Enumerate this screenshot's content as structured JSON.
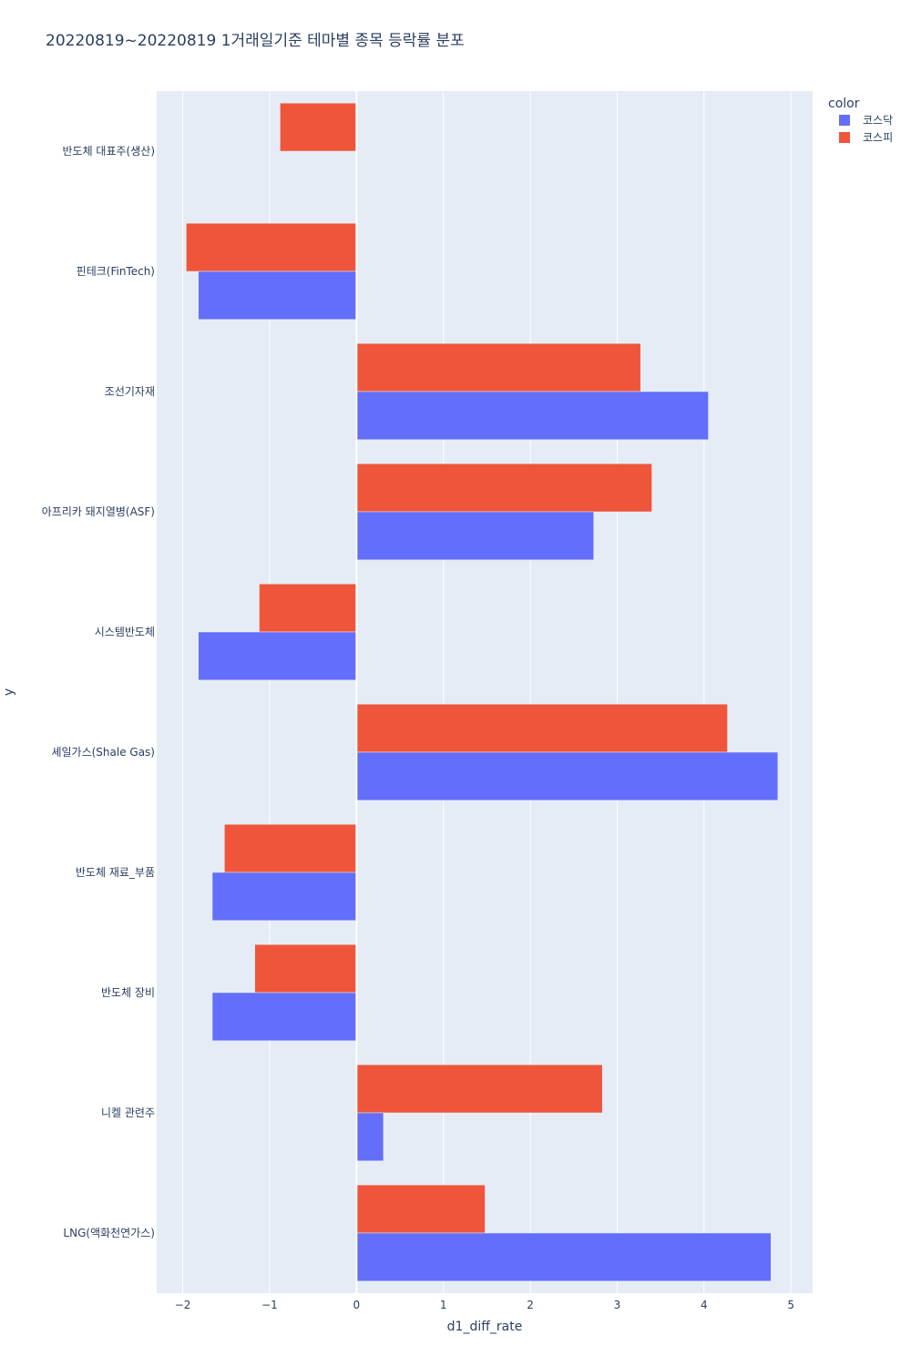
{
  "chart_data": {
    "type": "bar",
    "orientation": "horizontal",
    "barmode": "group",
    "title": "20220819~20220819 1거래일기준 테마별 종목 등락률 분포",
    "xlabel": "d1_diff_rate",
    "ylabel": "y",
    "xlim": [
      -2.3,
      5.25
    ],
    "xticks": [
      -2,
      -1,
      0,
      1,
      2,
      3,
      4,
      5
    ],
    "xtick_labels": [
      "−2",
      "−1",
      "0",
      "1",
      "2",
      "3",
      "4",
      "5"
    ],
    "grid": true,
    "legend_title": "color",
    "legend_position": "top-right",
    "categories": [
      "반도체 대표주(생산)",
      "핀테크(FinTech)",
      "조선기자재",
      "아프리카 돼지열병(ASF)",
      "시스템반도체",
      "셰일가스(Shale Gas)",
      "반도체 재료_부품",
      "반도체 장비",
      "니켈 관련주",
      "LNG(액화천연가스)"
    ],
    "series": [
      {
        "name": "코스닥",
        "color": "#636efa",
        "values": [
          null,
          -1.82,
          4.05,
          2.73,
          -1.82,
          4.85,
          -1.66,
          -1.66,
          0.31,
          4.77
        ]
      },
      {
        "name": "코스피",
        "color": "#ef553b",
        "values": [
          -0.88,
          -1.96,
          3.27,
          3.4,
          -1.12,
          4.27,
          -1.52,
          -1.17,
          2.83,
          1.48
        ]
      }
    ]
  },
  "colors": {
    "plot_background": "#e5ecf6",
    "grid": "#ffffff",
    "text": "#2a3f5f"
  }
}
